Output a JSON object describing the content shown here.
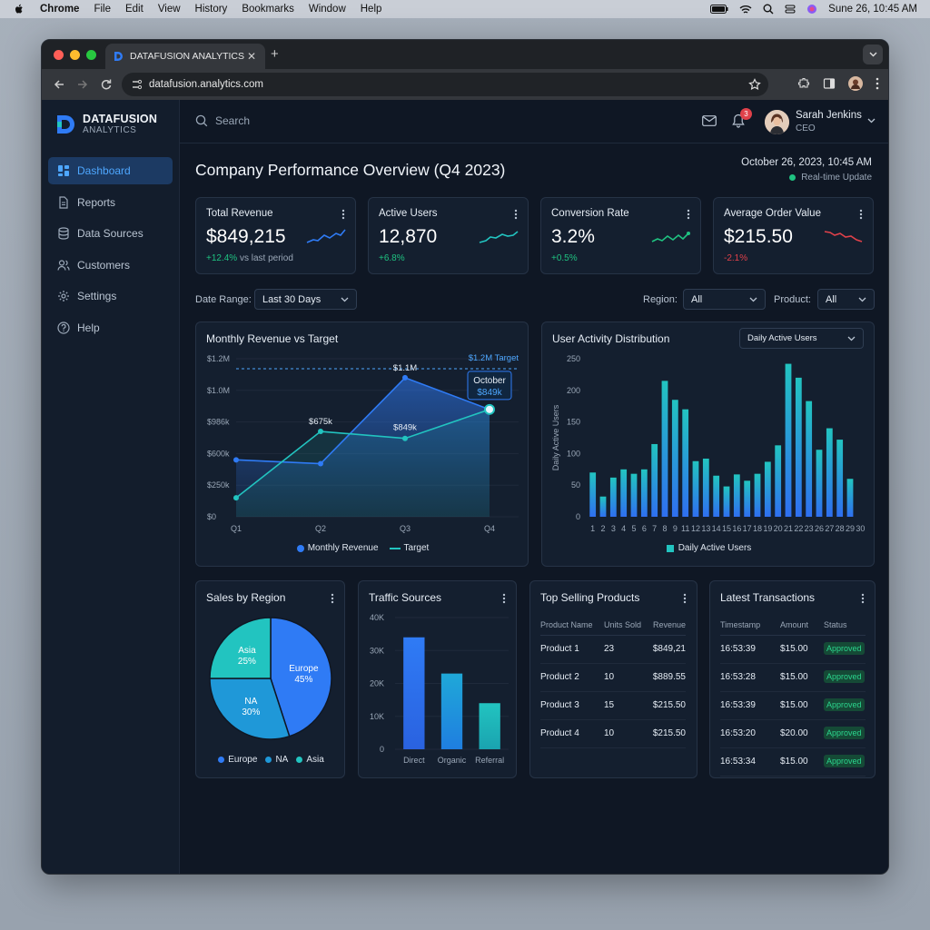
{
  "menubar": {
    "app": "Chrome",
    "items": [
      "File",
      "Edit",
      "View",
      "History",
      "Bookmarks",
      "Window",
      "Help"
    ],
    "datetime": "Sune 26, 10:45 AM"
  },
  "browser": {
    "tab_title": "DATAFUSION ANALYTICS",
    "url": "datafusion.analytics.com"
  },
  "brand": {
    "name": "DATAFUSION",
    "sub": "ANALYTICS"
  },
  "sidebar": {
    "items": [
      {
        "label": "Dashboard",
        "icon": "grid-icon"
      },
      {
        "label": "Reports",
        "icon": "document-icon"
      },
      {
        "label": "Data Sources",
        "icon": "database-icon"
      },
      {
        "label": "Customers",
        "icon": "users-icon"
      },
      {
        "label": "Settings",
        "icon": "gear-icon"
      },
      {
        "label": "Help",
        "icon": "help-icon"
      }
    ]
  },
  "topbar": {
    "search_placeholder": "Search",
    "notifications": "3",
    "user_name": "Sarah Jenkins",
    "user_role": "CEO"
  },
  "page": {
    "title": "Company Performance Overview (Q4 2023)",
    "date": "October 26, 2023, 10:45 AM",
    "realtime": "Real-time Update"
  },
  "kpis": [
    {
      "label": "Total Revenue",
      "value": "$849,215",
      "change": "+12.4%",
      "suffix": " vs last period",
      "trend": "up"
    },
    {
      "label": "Active Users",
      "value": "12,870",
      "change": "+6.8%",
      "suffix": "",
      "trend": "up"
    },
    {
      "label": "Conversion Rate",
      "value": "3.2%",
      "change": "+0.5%",
      "suffix": "",
      "trend": "up"
    },
    {
      "label": "Average Order Value",
      "value": "$215.50",
      "change": "-2.1%",
      "suffix": "",
      "trend": "down"
    }
  ],
  "filters": {
    "date_label": "Date Range:",
    "date_value": "Last 30 Days",
    "region_label": "Region:",
    "region_value": "All",
    "product_label": "Product:",
    "product_value": "All"
  },
  "colors": {
    "accent": "#2f7bf5",
    "teal": "#22c4c0",
    "green": "#1fc281",
    "red": "#e0414a"
  },
  "chart_data": [
    {
      "type": "line",
      "title": "Monthly Revenue vs Target",
      "categories": [
        "Q1",
        "Q2",
        "Q3",
        "Q4"
      ],
      "series": [
        {
          "name": "Monthly Revenue",
          "values": [
            450,
            420,
            1100,
            849
          ]
        },
        {
          "name": "Target",
          "values": [
            150,
            675,
            620,
            849
          ]
        }
      ],
      "target_line": 1200,
      "target_label": "$1.2M Target",
      "yticks": [
        "$0",
        "$250k",
        "$600k",
        "$986k",
        "$1.0M",
        "$1.2M"
      ],
      "ylim": [
        0,
        1250
      ],
      "annotations": [
        {
          "text": "$675k",
          "at": "Q2"
        },
        {
          "text": "$1.1M",
          "at": "Q3"
        },
        {
          "text": "$849k",
          "at": "Q3"
        }
      ],
      "tooltip": {
        "title": "October",
        "value": "$849k"
      },
      "legend": [
        "Monthly Revenue",
        "Target"
      ]
    },
    {
      "type": "bar",
      "title": "User Activity Distribution",
      "dropdown": "Daily Active Users",
      "ylabel": "Daily Active Users",
      "categories": [
        "1",
        "2",
        "3",
        "4",
        "5",
        "6",
        "7",
        "8",
        "9",
        "10",
        "11",
        "12",
        "13",
        "14",
        "15",
        "16",
        "17",
        "18",
        "19",
        "20",
        "21",
        "22",
        "23",
        "24",
        "25",
        "26",
        "27",
        "28",
        "29",
        "30"
      ],
      "x_labels": [
        "1",
        "2",
        "3",
        "4",
        "5",
        "6",
        "7",
        "8",
        "9",
        "11",
        "12",
        "13",
        "14",
        "15",
        "16",
        "17",
        "18",
        "19",
        "20",
        "21",
        "22",
        "23",
        "26",
        "27",
        "28",
        "29",
        "30"
      ],
      "values": [
        70,
        32,
        62,
        75,
        68,
        75,
        115,
        215,
        185,
        170,
        88,
        92,
        65,
        48,
        67,
        57,
        68,
        87,
        113,
        242,
        220,
        183,
        106,
        140,
        122,
        60,
        0,
        0,
        0,
        0
      ],
      "ylim": [
        0,
        250
      ],
      "yticks": [
        "0",
        "50",
        "100",
        "150",
        "200",
        "250"
      ],
      "legend": [
        "Daily Active Users"
      ]
    },
    {
      "type": "pie",
      "title": "Sales by Region",
      "labels": [
        "Europe",
        "NA",
        "Asia"
      ],
      "values": [
        45,
        30,
        25
      ],
      "display": [
        "45%",
        "30%",
        "25%"
      ]
    },
    {
      "type": "bar",
      "title": "Traffic Sources",
      "categories": [
        "Direct",
        "Organic",
        "Referral"
      ],
      "values": [
        34000,
        23000,
        14000
      ],
      "yticks": [
        "0",
        "10K",
        "20K",
        "30K",
        "40K"
      ],
      "ylim": [
        0,
        40000
      ]
    }
  ],
  "top_products": {
    "title": "Top Selling Products",
    "headers": [
      "Product Name",
      "Units Sold",
      "Revenue"
    ],
    "rows": [
      [
        "Product 1",
        "23",
        "$849,21"
      ],
      [
        "Product 2",
        "10",
        "$889.55"
      ],
      [
        "Product 3",
        "15",
        "$215.50"
      ],
      [
        "Product 4",
        "10",
        "$215.50"
      ]
    ]
  },
  "transactions": {
    "title": "Latest Transactions",
    "headers": [
      "Timestamp",
      "Amount",
      "Status"
    ],
    "rows": [
      [
        "16:53:39",
        "$15.00",
        "Approved"
      ],
      [
        "16:53:28",
        "$15.00",
        "Approved"
      ],
      [
        "16:53:39",
        "$15.00",
        "Approved"
      ],
      [
        "16:53:20",
        "$20.00",
        "Approved"
      ],
      [
        "16:53:34",
        "$15.00",
        "Approved"
      ]
    ]
  }
}
